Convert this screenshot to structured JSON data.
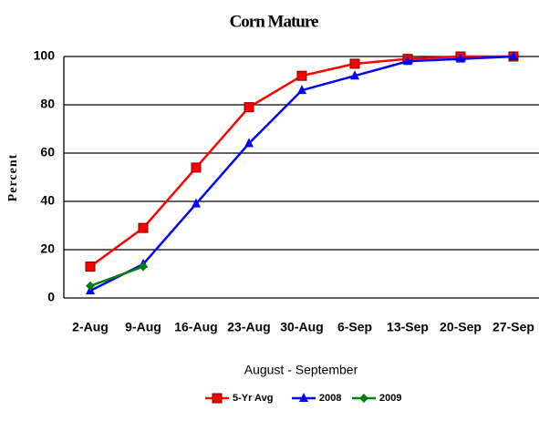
{
  "chart_data": {
    "type": "line",
    "title": "Corn Mature",
    "x_label": "August - September",
    "y_label": "Percent",
    "categories": [
      "2-Aug",
      "9-Aug",
      "16-Aug",
      "23-Aug",
      "30-Aug",
      "6-Sep",
      "13-Sep",
      "20-Sep",
      "27-Sep"
    ],
    "series": [
      {
        "name": "5-Yr Avg",
        "color": "#ff0000",
        "marker": "square",
        "values": [
          13,
          29,
          54,
          79,
          92,
          97,
          99,
          100,
          100
        ]
      },
      {
        "name": "2008",
        "color": "#0000ff",
        "marker": "triangle",
        "values": [
          3,
          14,
          39,
          64,
          86,
          92,
          98,
          99,
          100
        ]
      },
      {
        "name": "2009",
        "color": "#008000",
        "marker": "diamond",
        "values": [
          5,
          13,
          null,
          null,
          null,
          null,
          null,
          null,
          null
        ]
      }
    ],
    "ylim": [
      0,
      100
    ],
    "yticks": [
      0,
      20,
      40,
      60,
      80,
      100
    ],
    "grid": true,
    "legend": "bottom"
  }
}
